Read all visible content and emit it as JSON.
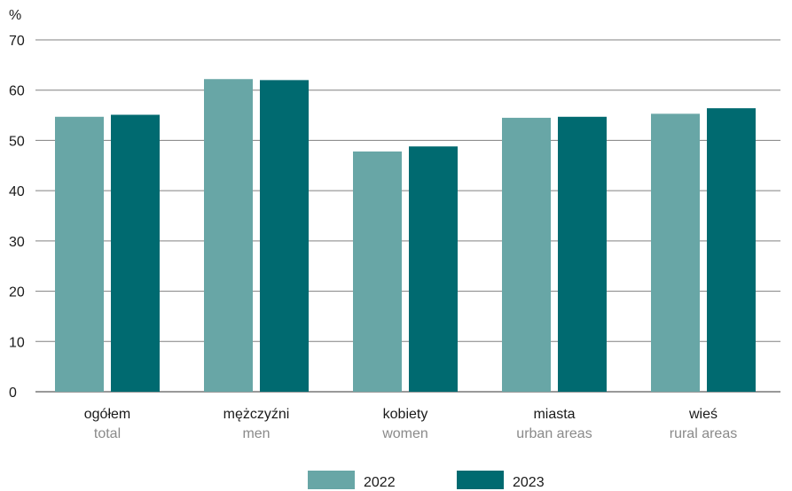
{
  "chart_data": {
    "type": "bar",
    "unit_label": "%",
    "categories": [
      "ogółem",
      "mężczyźni",
      "kobiety",
      "miasta",
      "wieś"
    ],
    "categories_en": [
      "total",
      "men",
      "women",
      "urban areas",
      "rural areas"
    ],
    "series": [
      {
        "name": "2022",
        "values": [
          54.7,
          62.2,
          47.8,
          54.5,
          55.3
        ],
        "color": "#68a6a6"
      },
      {
        "name": "2023",
        "values": [
          55.1,
          62.0,
          48.8,
          54.7,
          56.4
        ],
        "color": "#006a70"
      }
    ],
    "ylim": [
      0,
      70
    ],
    "yticks": [
      0,
      10,
      20,
      30,
      40,
      50,
      60,
      70
    ],
    "grid": true,
    "legend": "bottom-center"
  }
}
